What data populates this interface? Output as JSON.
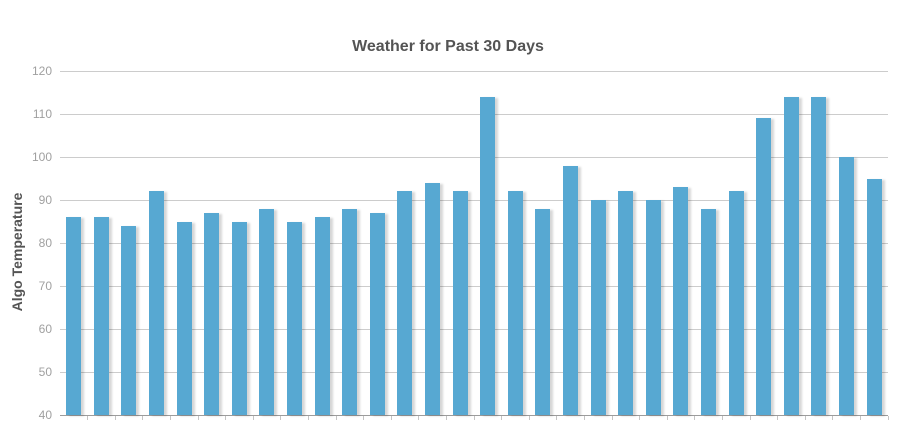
{
  "chart_data": {
    "type": "bar",
    "title": "Weather for Past 30 Days",
    "xlabel": "",
    "ylabel": "Algo Temperature",
    "x_tick_labels": [],
    "values": [
      86,
      86,
      84,
      92,
      85,
      87,
      85,
      88,
      85,
      86,
      88,
      87,
      92,
      94,
      92,
      114,
      92,
      88,
      98,
      90,
      92,
      90,
      93,
      88,
      92,
      109,
      114,
      114,
      100,
      95
    ],
    "ylim": [
      40,
      120
    ],
    "yticks": [
      40,
      50,
      60,
      70,
      80,
      90,
      100,
      110,
      120
    ],
    "grid": true,
    "legend": "none",
    "bar_color": "#57a8d2"
  },
  "colors": {
    "bar": "#57a8d2",
    "gridline": "#cccccc",
    "axis_line": "#9c9c9c",
    "tick_mark": "#c5c5c5",
    "tick_label_text": "#a0a0a0",
    "title_text": "#545454",
    "background": "#ffffff"
  }
}
